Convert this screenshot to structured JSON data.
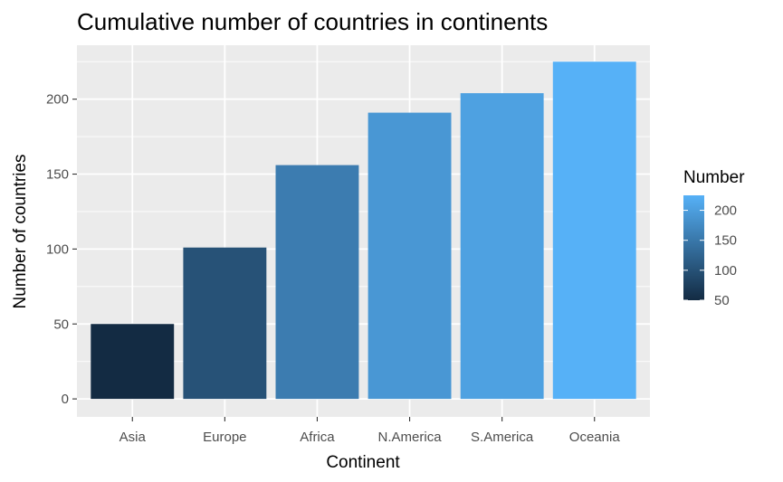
{
  "chart_data": {
    "type": "bar",
    "title": "Cumulative number of countries in continents",
    "xlabel": "Continent",
    "ylabel": "Number of countries",
    "categories": [
      "Asia",
      "Europe",
      "Africa",
      "N.America",
      "S.America",
      "Oceania"
    ],
    "values": [
      50,
      101,
      156,
      191,
      204,
      225
    ],
    "ylim": [
      -12,
      236
    ],
    "yticks": [
      0,
      50,
      100,
      150,
      200
    ],
    "grid": true,
    "legend": {
      "title": "Number",
      "placement": "right",
      "ticks": [
        50,
        100,
        150,
        200
      ],
      "range": [
        50,
        225
      ],
      "color_low": "#132B43",
      "color_high": "#56B1F7"
    },
    "panel_background": "#EBEBEB",
    "grid_color": "#FFFFFF"
  }
}
